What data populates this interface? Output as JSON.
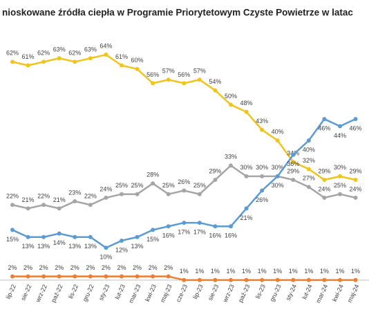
{
  "chart_data": {
    "type": "line",
    "title": "nioskowane źródła ciepła w Programie Priorytetowym Czyste Powietrze w latac",
    "categories": [
      "lip-22",
      "sie-22",
      "wrz-22",
      "paź-22",
      "lis-22",
      "gru-22",
      "sty-23",
      "lut-23",
      "mar-23",
      "kwi-23",
      "maj-23",
      "cze-23",
      "lip-23",
      "sie-23",
      "wrz-23",
      "paź-23",
      "lis-23",
      "gru-23",
      "sty-24",
      "lut-24",
      "mar-24",
      "kwi-24",
      "maj-24"
    ],
    "ylim": [
      0,
      70
    ],
    "series": [
      {
        "color": "#f2c318",
        "values": [
          62,
          61,
          62,
          63,
          62,
          63,
          64,
          61,
          60,
          56,
          57,
          56,
          57,
          54,
          50,
          48,
          43,
          40,
          34,
          32,
          29,
          30,
          29
        ],
        "value_labels": [
          "62%",
          "61%",
          "62%",
          "63%",
          "62%",
          "63%",
          "64%",
          "61%",
          "60%",
          "56%",
          "57%",
          "56%",
          "57%",
          "54%",
          "50%",
          "48%",
          "43%",
          "40%",
          "34%",
          "32%",
          "29%",
          "30%",
          "29%"
        ]
      },
      {
        "color": "#a5a5a5",
        "values": [
          22,
          21,
          22,
          21,
          23,
          22,
          24,
          25,
          25,
          28,
          25,
          26,
          25,
          29,
          33,
          30,
          30,
          30,
          29,
          27,
          24,
          25,
          24
        ],
        "value_labels": [
          "22%",
          "21%",
          "22%",
          "21%",
          "23%",
          "22%",
          "24%",
          "25%",
          "25%",
          "28%",
          "25%",
          "26%",
          "25%",
          "29%",
          "33%",
          "30%",
          "30%",
          "30%",
          "29%",
          "27%",
          "24%",
          "25%",
          "24%"
        ]
      },
      {
        "color": "#5b9bd5",
        "values": [
          15,
          13,
          13,
          14,
          13,
          13,
          10,
          12,
          13,
          15,
          16,
          17,
          17,
          16,
          16,
          21,
          26,
          30,
          36,
          40,
          46,
          44,
          46
        ],
        "value_labels": [
          "15%",
          "13%",
          "13%",
          "14%",
          "13%",
          "13%",
          "10%",
          "12%",
          "13%",
          "15%",
          "16%",
          "17%",
          "17%",
          "16%",
          "16%",
          "21%",
          "26%",
          "30%",
          "36%",
          "40%",
          "46%",
          "44%",
          "46%"
        ]
      },
      {
        "color": "#ed7d31",
        "values": [
          2,
          2,
          2,
          2,
          2,
          2,
          2,
          2,
          2,
          2,
          2,
          1,
          1,
          1,
          1,
          1,
          1,
          1,
          1,
          1,
          1,
          1,
          1
        ],
        "value_labels": [
          "2%",
          "2%",
          "2%",
          "2%",
          "2%",
          "2%",
          "2%",
          "2%",
          "2%",
          "2%",
          "2%",
          "1%",
          "1%",
          "1%",
          "1%",
          "1%",
          "1%",
          "1%",
          "1%",
          "1%",
          "1%",
          "1%",
          "1%"
        ]
      }
    ]
  }
}
